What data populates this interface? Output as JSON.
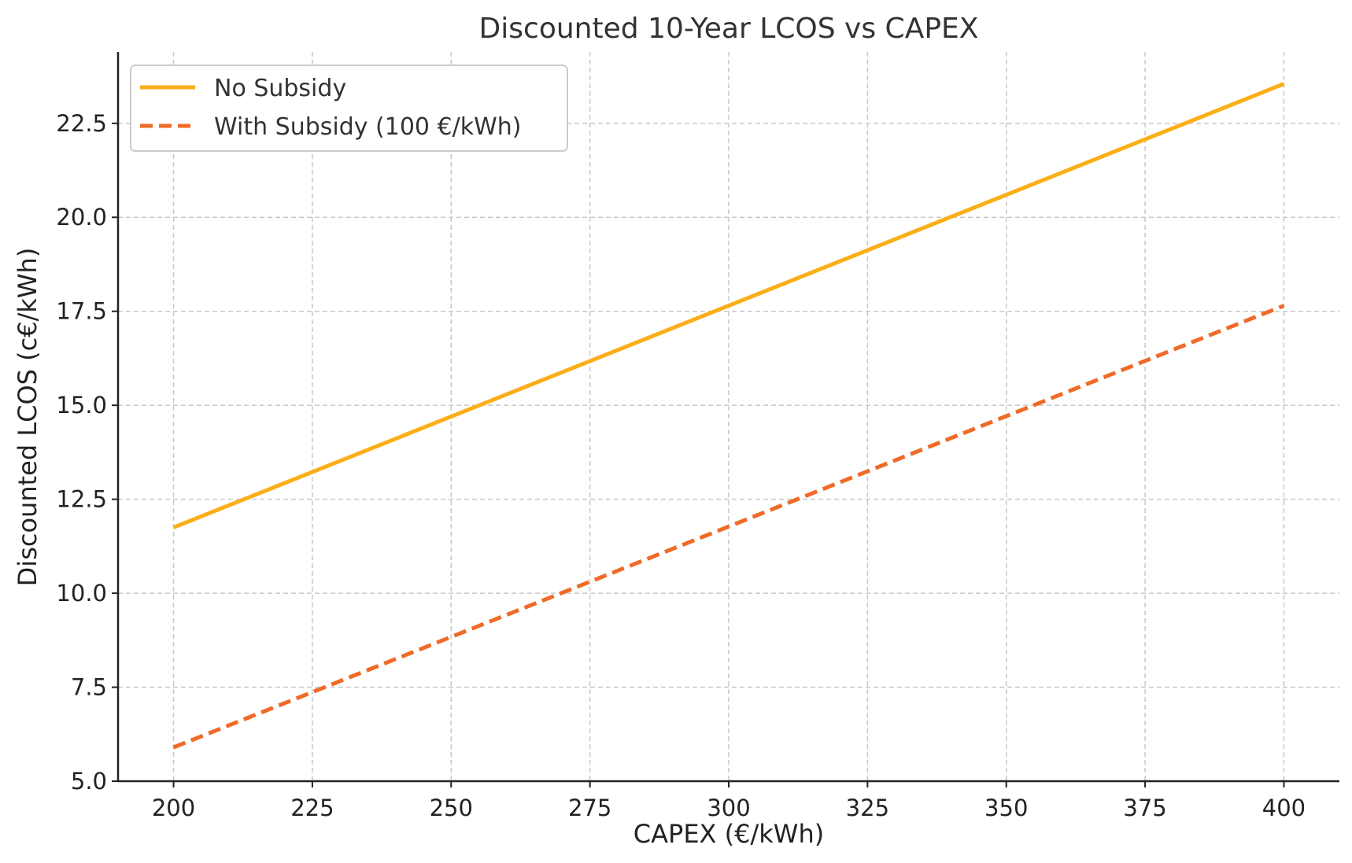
{
  "chart_data": {
    "type": "line",
    "title": "Discounted 10-Year LCOS vs CAPEX",
    "xlabel": "CAPEX (€/kWh)",
    "ylabel": "Discounted LCOS (c€/kWh)",
    "xlim": [
      190,
      410
    ],
    "ylim": [
      5.0,
      24.4
    ],
    "xticks": [
      200,
      225,
      250,
      275,
      300,
      325,
      350,
      375,
      400
    ],
    "xtick_labels": [
      "200",
      "225",
      "250",
      "275",
      "300",
      "325",
      "350",
      "375",
      "400"
    ],
    "yticks": [
      5.0,
      7.5,
      10.0,
      12.5,
      15.0,
      17.5,
      20.0,
      22.5
    ],
    "ytick_labels": [
      "5.0",
      "7.5",
      "10.0",
      "12.5",
      "15.0",
      "17.5",
      "20.0",
      "22.5"
    ],
    "grid": true,
    "legend_position": "top-left",
    "x": [
      200,
      400
    ],
    "series": [
      {
        "name": "No Subsidy",
        "values": [
          11.75,
          23.55
        ],
        "color": "#FBAE17",
        "style": "solid"
      },
      {
        "name": "With Subsidy (100 €/kWh)",
        "values": [
          5.9,
          17.65
        ],
        "color": "#F06A28",
        "style": "dashed"
      }
    ]
  }
}
